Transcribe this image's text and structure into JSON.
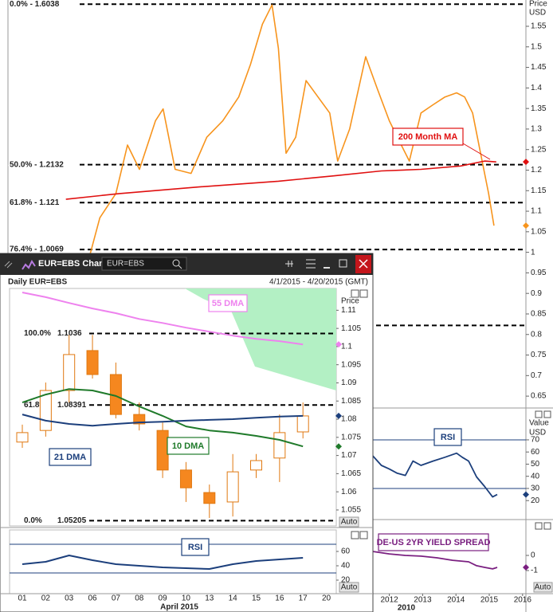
{
  "window": {
    "title": "EUR=EBS Chart",
    "search": "EUR=EBS"
  },
  "controls": {
    "auto": "Auto"
  },
  "chart_data": [
    {
      "type": "line",
      "y_label": "Price",
      "y_unit": "USD",
      "xlim": [
        2000.6,
        2016.1
      ],
      "ylim": [
        0.625,
        1.614
      ],
      "yticks": [
        0.65,
        0.7,
        0.75,
        0.8,
        0.85,
        0.9,
        0.95,
        1,
        1.05,
        1.1,
        1.15,
        1.2,
        1.25,
        1.3,
        1.35,
        1.4,
        1.45,
        1.5,
        1.55
      ],
      "levels": [
        {
          "value": 1.6038,
          "label": "0.0% - 1.6038"
        },
        {
          "value": 1.2132,
          "label": "50.0% - 1.2132"
        },
        {
          "value": 1.121,
          "label": "61.8% - 1.121"
        },
        {
          "value": 1.0069,
          "label": "76.4% - 1.0069"
        },
        {
          "value": 0.822,
          "label": null
        }
      ],
      "series": [
        {
          "color": "#f7941d",
          "x": [
            2003.0,
            2003.31,
            2003.79,
            2004.14,
            2004.5,
            2004.98,
            2005.21,
            2005.57,
            2006.05,
            2006.52,
            2007.0,
            2007.48,
            2007.83,
            2008.19,
            2008.48,
            2008.67,
            2008.9,
            2009.19,
            2009.5,
            2009.86,
            2010.21,
            2010.45,
            2010.81,
            2011.29,
            2011.64,
            2012.0,
            2012.36,
            2012.6,
            2012.95,
            2013.31,
            2013.67,
            2014.02,
            2014.26,
            2014.5,
            2014.74,
            2014.98,
            2015.14
          ],
          "values": [
            0.99,
            1.084,
            1.143,
            1.261,
            1.202,
            1.32,
            1.349,
            1.202,
            1.192,
            1.28,
            1.32,
            1.378,
            1.457,
            1.555,
            1.602,
            1.496,
            1.241,
            1.28,
            1.418,
            1.378,
            1.339,
            1.222,
            1.3,
            1.476,
            1.398,
            1.32,
            1.261,
            1.222,
            1.339,
            1.359,
            1.378,
            1.388,
            1.378,
            1.339,
            1.241,
            1.143,
            1.065
          ]
        },
        {
          "name": "200 Month MA",
          "color": "#e01010",
          "x": [
            2002.29,
            2003.9,
            2006.29,
            2008.67,
            2010.33,
            2011.76,
            2012.95,
            2014.14,
            2014.86,
            2015.21
          ],
          "values": [
            1.129,
            1.143,
            1.159,
            1.173,
            1.186,
            1.198,
            1.202,
            1.21,
            1.222,
            1.22
          ]
        }
      ]
    },
    {
      "type": "line",
      "title": "RSI",
      "y_label": "Value",
      "y_unit": "USD",
      "xlim": [
        2000.6,
        2016.1
      ],
      "ylim": [
        5.7,
        84.4
      ],
      "yticks": [
        20,
        30,
        40,
        50,
        60,
        70
      ],
      "levels": [
        70,
        30
      ],
      "series": [
        {
          "color": "#1c3f7c",
          "x": [
            2011.48,
            2011.76,
            2012.0,
            2012.24,
            2012.48,
            2012.71,
            2012.95,
            2013.31,
            2013.67,
            2014.02,
            2014.19,
            2014.38,
            2014.62,
            2014.86,
            2015.1,
            2015.24
          ],
          "values": [
            57.5,
            49,
            46,
            42.5,
            40.7,
            52.5,
            49,
            52.5,
            55.7,
            59,
            55.7,
            52.5,
            39.5,
            31.6,
            23,
            25
          ]
        }
      ]
    },
    {
      "type": "line",
      "title": "DE-US 2YR YIELD SPREAD",
      "xlim": [
        2000.6,
        2016.1
      ],
      "ylim": [
        -2.53,
        1.95
      ],
      "yticks": [
        -1,
        0
      ],
      "xticks": [
        2012,
        2013,
        2014,
        2015,
        2016
      ],
      "x_sublabel": "2010",
      "series": [
        {
          "color": "#7a1f80",
          "x": [
            2011.52,
            2012.0,
            2012.48,
            2012.95,
            2013.43,
            2013.9,
            2014.38,
            2014.62,
            2014.86,
            2015.1,
            2015.24
          ],
          "values": [
            0.26,
            0.1,
            0,
            -0.05,
            -0.16,
            -0.32,
            -0.42,
            -0.68,
            -0.79,
            -0.89,
            -0.79
          ]
        }
      ]
    },
    {
      "type": "candlestick",
      "title": "Daily EUR=EBS",
      "date_range": "4/1/2015 - 4/20/2015 (GMT)",
      "y_label": "Price",
      "x_label": "April 2015",
      "categories": [
        "01",
        "02",
        "03",
        "06",
        "07",
        "08",
        "09",
        "10",
        "13",
        "14",
        "15",
        "16",
        "17",
        "20"
      ],
      "open": [
        1.0737,
        1.0769,
        1.0879,
        1.0989,
        1.0923,
        1.0813,
        1.0769,
        1.066,
        1.0598,
        1.0572,
        1.066,
        1.0693,
        1.0765,
        null
      ],
      "high": [
        1.0785,
        1.0901,
        1.1032,
        1.1032,
        1.0956,
        1.0846,
        1.0791,
        1.0682,
        1.062,
        1.0704,
        1.0704,
        1.0813,
        1.0846,
        null
      ],
      "low": [
        1.0721,
        1.0752,
        1.0846,
        1.0912,
        1.0802,
        1.0769,
        1.0638,
        1.0572,
        1.0528,
        1.0532,
        1.0638,
        1.0627,
        1.0747,
        null
      ],
      "close": [
        1.0763,
        1.0879,
        1.0978,
        1.0923,
        1.0813,
        1.0787,
        1.066,
        1.0611,
        1.0568,
        1.0655,
        1.0686,
        1.0763,
        1.0809,
        null
      ],
      "up_color": "#ffffff",
      "down_color": "#f5871f",
      "edge_color": "#e07810",
      "ylim": [
        1.0506,
        1.116
      ],
      "yticks": [
        1.055,
        1.06,
        1.065,
        1.07,
        1.075,
        1.08,
        1.085,
        1.09,
        1.095,
        1.1,
        1.105,
        1.11
      ],
      "levels": [
        {
          "ratio": "100.0%",
          "value": 1.1036
        },
        {
          "ratio": "61.8%",
          "value": 1.08391
        },
        {
          "ratio": "0.0%",
          "value": 1.05205
        }
      ],
      "series": [
        {
          "name": "55 DMA",
          "color": "#ee82ee",
          "values": [
            1.1149,
            1.1136,
            1.112,
            1.1105,
            1.1092,
            1.1076,
            1.1065,
            1.1052,
            1.1041,
            1.103,
            1.1021,
            1.1015,
            1.1006,
            null
          ]
        },
        {
          "name": "10 DMA",
          "color": "#1f7a2a",
          "values": [
            1.0846,
            1.0868,
            1.0883,
            1.0879,
            1.0864,
            1.0835,
            1.0809,
            1.078,
            1.0769,
            1.0763,
            1.0754,
            1.0743,
            1.0725,
            null
          ]
        },
        {
          "name": "21 DMA",
          "color": "#1c3f7c",
          "values": [
            1.0813,
            1.0796,
            1.0787,
            1.0782,
            1.0787,
            1.0791,
            1.0793,
            1.0796,
            1.0798,
            1.08,
            1.0804,
            1.0807,
            1.0809,
            null
          ]
        }
      ]
    },
    {
      "type": "line",
      "title": "RSI",
      "ylim": [
        1.1,
        90
      ],
      "yticks": [
        20,
        40,
        60
      ],
      "levels": [
        70,
        30
      ],
      "series": [
        {
          "color": "#1c3f7c",
          "values": [
            42.2,
            45.6,
            54.4,
            47.8,
            42.2,
            40,
            37.8,
            36.7,
            35.6,
            42.2,
            46.7,
            48.9,
            51.1,
            null
          ]
        }
      ]
    }
  ]
}
